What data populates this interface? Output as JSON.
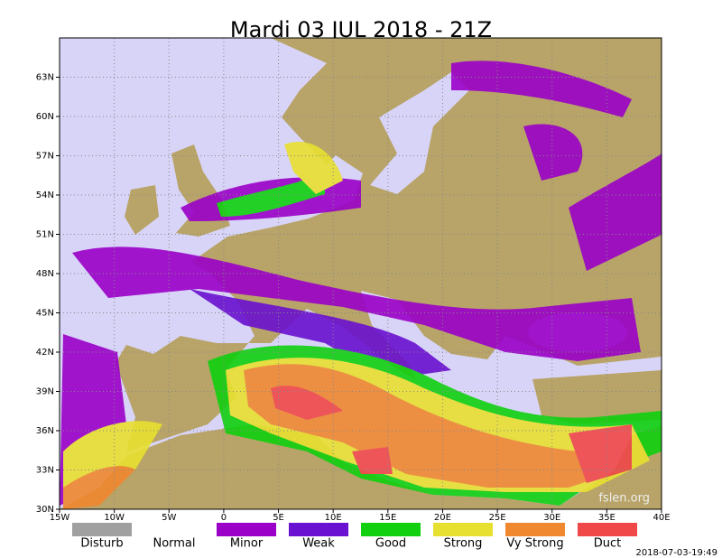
{
  "title": "Mardi 03 JUL 2018 - 21Z",
  "map": {
    "xlim": [
      -15,
      40
    ],
    "ylim": [
      30,
      66
    ],
    "grid": true,
    "xticks": [
      {
        "value": -15,
        "label": "15W"
      },
      {
        "value": -10,
        "label": "10W"
      },
      {
        "value": -5,
        "label": "5W"
      },
      0,
      {
        "value": 5,
        "label": "5E"
      },
      {
        "value": 10,
        "label": "10E"
      },
      {
        "value": 15,
        "label": "15E"
      },
      {
        "value": 20,
        "label": "20E"
      },
      {
        "value": 25,
        "label": "25E"
      },
      {
        "value": 30,
        "label": "30E"
      },
      {
        "value": 35,
        "label": "35E"
      },
      {
        "value": 40,
        "label": "40E"
      }
    ],
    "yticks": [
      {
        "value": 30,
        "label": "30N"
      },
      {
        "value": 33,
        "label": "33N"
      },
      {
        "value": 36,
        "label": "36N"
      },
      {
        "value": 39,
        "label": "39N"
      },
      {
        "value": 42,
        "label": "42N"
      },
      {
        "value": 45,
        "label": "45N"
      },
      {
        "value": 48,
        "label": "48N"
      },
      {
        "value": 51,
        "label": "51N"
      },
      {
        "value": 54,
        "label": "54N"
      },
      {
        "value": 57,
        "label": "57N"
      },
      {
        "value": 60,
        "label": "60N"
      },
      {
        "value": 63,
        "label": "63N"
      }
    ]
  },
  "legend": [
    {
      "label": "Disturb",
      "color": "#a0a0a0"
    },
    {
      "label": "Normal"
    },
    {
      "label": "Minor",
      "color": "#9a00c8"
    },
    {
      "label": "Weak",
      "color": "#6a10d0"
    },
    {
      "label": "Good",
      "color": "#10d010"
    },
    {
      "label": "Strong",
      "color": "#e8e030"
    },
    {
      "label": "Vy Strong",
      "color": "#f08830"
    },
    {
      "label": "Duct",
      "color": "#f04848"
    }
  ],
  "watermark": "fslen.org",
  "timestamp": "2018-07-03-19:49"
}
